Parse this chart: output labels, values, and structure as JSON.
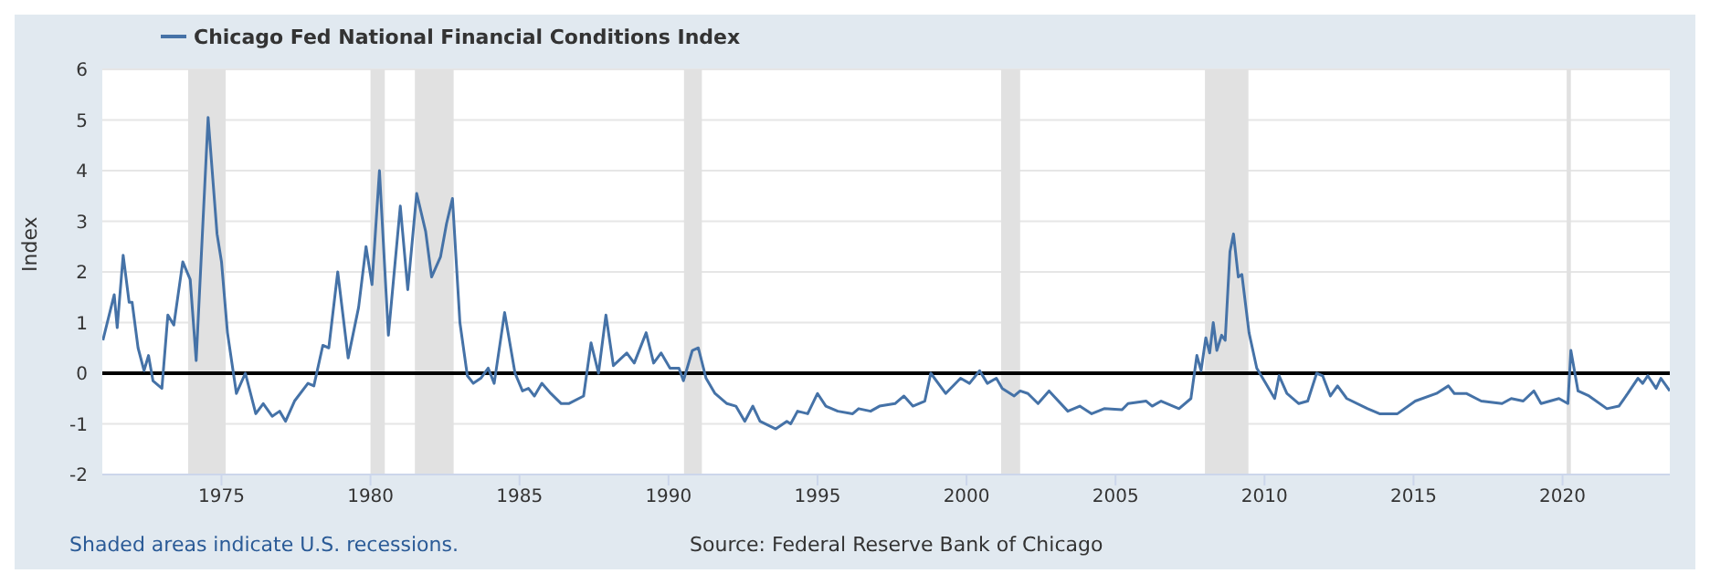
{
  "chart_data": {
    "type": "line",
    "ylabel": "Index",
    "x": [
      1971.02,
      1971.4,
      1971.5,
      1971.7,
      1971.9,
      1972.0,
      1972.2,
      1972.4,
      1972.55,
      1972.7,
      1973.0,
      1973.2,
      1973.4,
      1973.7,
      1973.95,
      1974.15,
      1974.55,
      1974.85,
      1975.0,
      1975.2,
      1975.5,
      1975.8,
      1976.15,
      1976.4,
      1976.7,
      1976.95,
      1977.15,
      1977.45,
      1977.9,
      1978.1,
      1978.4,
      1978.6,
      1978.9,
      1979.25,
      1979.6,
      1979.85,
      1980.05,
      1980.3,
      1980.6,
      1981.0,
      1981.25,
      1981.55,
      1981.85,
      1982.05,
      1982.35,
      1982.55,
      1982.75,
      1983.0,
      1983.25,
      1983.45,
      1983.7,
      1983.95,
      1984.15,
      1984.5,
      1984.85,
      1985.1,
      1985.3,
      1985.5,
      1985.75,
      1986.05,
      1986.4,
      1986.65,
      1987.15,
      1987.4,
      1987.65,
      1987.9,
      1988.15,
      1988.6,
      1988.85,
      1989.25,
      1989.5,
      1989.75,
      1990.05,
      1990.35,
      1990.5,
      1990.8,
      1991.0,
      1991.26,
      1991.56,
      1991.96,
      1992.26,
      1992.56,
      1992.83,
      1993.07,
      1993.6,
      1993.97,
      1994.1,
      1994.33,
      1994.67,
      1995.0,
      1995.28,
      1995.68,
      1996.18,
      1996.38,
      1996.78,
      1997.08,
      1997.6,
      1997.9,
      1998.2,
      1998.6,
      1998.8,
      1999.3,
      1999.8,
      2000.1,
      2000.44,
      2000.7,
      2001.0,
      2001.2,
      2001.6,
      2001.8,
      2002.06,
      2002.4,
      2002.77,
      2003.4,
      2003.8,
      2004.2,
      2004.62,
      2005.22,
      2005.42,
      2006.03,
      2006.23,
      2006.53,
      2007.13,
      2007.53,
      2007.73,
      2007.87,
      2008.03,
      2008.16,
      2008.28,
      2008.4,
      2008.56,
      2008.68,
      2008.84,
      2008.96,
      2009.12,
      2009.24,
      2009.48,
      2009.74,
      2010.04,
      2010.34,
      2010.49,
      2010.75,
      2011.15,
      2011.45,
      2011.75,
      2011.95,
      2012.21,
      2012.45,
      2012.76,
      2013.46,
      2013.86,
      2014.46,
      2015.06,
      2015.77,
      2016.17,
      2016.37,
      2016.77,
      2017.27,
      2017.97,
      2018.28,
      2018.68,
      2019.04,
      2019.28,
      2019.88,
      2020.18,
      2020.28,
      2020.52,
      2020.89,
      2021.49,
      2021.89,
      2022.19,
      2022.53,
      2022.69,
      2022.86,
      2023.14,
      2023.3,
      2023.6
    ],
    "series": [
      {
        "name": "Chicago Fed National Financial Conditions Index",
        "color": "#4572a7",
        "values": [
          0.65,
          1.55,
          0.9,
          2.33,
          1.4,
          1.4,
          0.5,
          0.05,
          0.35,
          -0.15,
          -0.3,
          1.15,
          0.95,
          2.2,
          1.85,
          0.25,
          5.05,
          2.75,
          2.2,
          0.8,
          -0.4,
          0.0,
          -0.8,
          -0.6,
          -0.85,
          -0.75,
          -0.95,
          -0.55,
          -0.2,
          -0.25,
          0.55,
          0.5,
          2.0,
          0.3,
          1.3,
          2.5,
          1.75,
          4.0,
          0.75,
          3.3,
          1.65,
          3.55,
          2.8,
          1.9,
          2.3,
          2.95,
          3.45,
          1.0,
          -0.05,
          -0.2,
          -0.1,
          0.1,
          -0.2,
          1.2,
          0.0,
          -0.35,
          -0.3,
          -0.45,
          -0.2,
          -0.4,
          -0.6,
          -0.6,
          -0.45,
          0.6,
          0.0,
          1.15,
          0.15,
          0.4,
          0.2,
          0.8,
          0.2,
          0.4,
          0.1,
          0.1,
          -0.15,
          0.45,
          0.5,
          -0.1,
          -0.4,
          -0.6,
          -0.65,
          -0.95,
          -0.65,
          -0.95,
          -1.1,
          -0.95,
          -1.0,
          -0.75,
          -0.8,
          -0.4,
          -0.65,
          -0.75,
          -0.8,
          -0.7,
          -0.75,
          -0.65,
          -0.6,
          -0.45,
          -0.65,
          -0.55,
          0.0,
          -0.4,
          -0.1,
          -0.2,
          0.05,
          -0.2,
          -0.1,
          -0.3,
          -0.45,
          -0.35,
          -0.4,
          -0.6,
          -0.35,
          -0.75,
          -0.65,
          -0.8,
          -0.7,
          -0.72,
          -0.6,
          -0.55,
          -0.65,
          -0.55,
          -0.7,
          -0.5,
          0.35,
          0.05,
          0.7,
          0.4,
          1.0,
          0.45,
          0.75,
          0.65,
          2.4,
          2.75,
          1.9,
          1.95,
          0.8,
          0.1,
          -0.2,
          -0.5,
          -0.05,
          -0.4,
          -0.6,
          -0.55,
          0.0,
          -0.05,
          -0.45,
          -0.25,
          -0.5,
          -0.7,
          -0.8,
          -0.8,
          -0.55,
          -0.4,
          -0.25,
          -0.4,
          -0.4,
          -0.55,
          -0.6,
          -0.5,
          -0.55,
          -0.35,
          -0.6,
          -0.5,
          -0.6,
          0.45,
          -0.35,
          -0.45,
          -0.7,
          -0.65,
          -0.4,
          -0.1,
          -0.2,
          -0.05,
          -0.3,
          -0.1,
          -0.35
        ]
      }
    ],
    "xlim": [
      1971.0,
      2023.6
    ],
    "xticks": [
      1975,
      1980,
      1985,
      1990,
      1995,
      2000,
      2005,
      2010,
      2015,
      2020
    ],
    "ylim": [
      -2,
      6
    ],
    "yticks": [
      -2,
      -1,
      0,
      1,
      2,
      3,
      4,
      5,
      6
    ],
    "grid": "y",
    "legend": "top left",
    "ref_lines": [
      {
        "axis": "y",
        "value": 0,
        "color": "#000000"
      }
    ],
    "bands": [
      {
        "axis": "x",
        "from": 1973.88,
        "to": 1975.14,
        "color": "#e1e1e1"
      },
      {
        "axis": "x",
        "from": 1980.0,
        "to": 1980.48,
        "color": "#e1e1e1"
      },
      {
        "axis": "x",
        "from": 1981.49,
        "to": 1982.79,
        "color": "#e1e1e1"
      },
      {
        "axis": "x",
        "from": 1990.52,
        "to": 1991.12,
        "color": "#e1e1e1"
      },
      {
        "axis": "x",
        "from": 2001.16,
        "to": 2001.8,
        "color": "#e1e1e1"
      },
      {
        "axis": "x",
        "from": 2008.0,
        "to": 2009.46,
        "color": "#e1e1e1"
      },
      {
        "axis": "x",
        "from": 2020.14,
        "to": 2020.28,
        "color": "#e1e1e1"
      }
    ],
    "annotations": [
      "Shaded areas indicate U.S. recessions.",
      "Source: Federal Reserve Bank of Chicago"
    ]
  }
}
